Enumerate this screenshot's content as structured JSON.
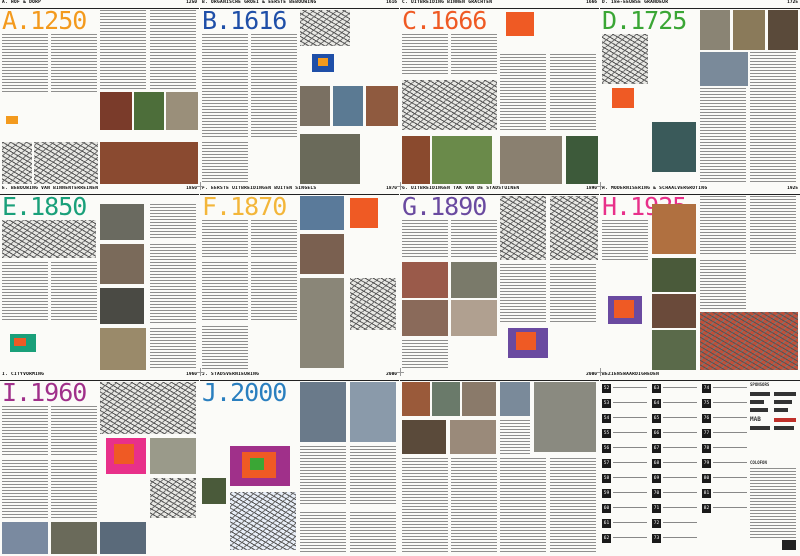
{
  "accent_colors": {
    "A": "#f39a1e",
    "B": "#1f4fa8",
    "C": "#ef5a24",
    "D": "#3aa635",
    "E": "#1aa07a",
    "F": "#f3b63a",
    "G": "#6a4aa0",
    "H": "#e8308a",
    "I": "#a0308a",
    "J": "#2a7fbf"
  },
  "panels": [
    {
      "letter_year": "A.1250",
      "label": "A. HOF & DORP",
      "year": "1250"
    },
    {
      "letter_year": "B.1616",
      "label": "B. ORGANISCHE GROEI & EERSTE BEBOUWING",
      "year": "1616"
    },
    {
      "letter_year": "C.1666",
      "label": "C. UITBREIDING BINNEN GRACHTEN",
      "year": "1666"
    },
    {
      "letter_year": "D.1725",
      "label": "D. 18e-EEUWSE GRANDEUR",
      "year": "1725"
    },
    {
      "letter_year": "E.1850",
      "label": "E. BEBOUWING VAN BINNENTERREINEN",
      "year": "1850"
    },
    {
      "letter_year": "F.1870",
      "label": "F. EERSTE UITBREIDINGEN BUITEN SINGELS",
      "year": "1870"
    },
    {
      "letter_year": "G.1890",
      "label": "G. UITBREIDINGEN TAK VAN DE STADSTUINEN",
      "year": "1890"
    },
    {
      "letter_year": "H.1925",
      "label": "H. MODERNISERING & SCHAALVERGROTING",
      "year": "1925"
    },
    {
      "letter_year": "I.1960",
      "label": "I. CITYVORMING",
      "year": "1960"
    },
    {
      "letter_year": "J.2000",
      "label": "J. STADSVERNIEUWING",
      "year": "2000"
    }
  ],
  "extra_years": {
    "mid_bottom": "2000"
  },
  "index": {
    "title": "BEZIENSWAARDIGHEDEN",
    "numbers": [
      "52",
      "53",
      "54",
      "55",
      "56",
      "57",
      "58",
      "59",
      "60",
      "61",
      "62",
      "63",
      "64",
      "65",
      "66",
      "67",
      "68",
      "69",
      "70",
      "71",
      "72",
      "73",
      "74",
      "75",
      "76",
      "77",
      "78",
      "79",
      "80",
      "81",
      "82"
    ]
  },
  "sponsors": {
    "title": "SPONSORS",
    "logo_text": "MAB"
  },
  "colofon": {
    "title": "COLOFON"
  },
  "legend": {
    "a": "Bebouwd",
    "b": "Onbebouwd"
  }
}
